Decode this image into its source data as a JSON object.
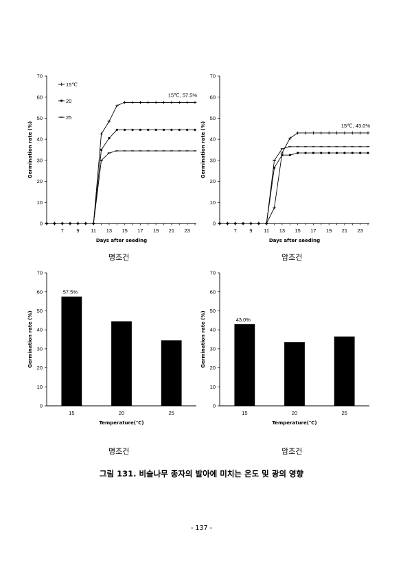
{
  "chart_data": [
    {
      "type": "line",
      "ylabel": "Germination rate (%)",
      "xlabel": "Days after seeding",
      "ylim": [
        0,
        70
      ],
      "yticks": [
        0,
        10,
        20,
        30,
        40,
        50,
        60,
        70
      ],
      "xticks": [
        7,
        9,
        11,
        13,
        15,
        17,
        19,
        21,
        23
      ],
      "x": [
        5,
        6,
        7,
        8,
        9,
        10,
        11,
        12,
        13,
        14,
        15,
        16,
        17,
        18,
        19,
        20,
        21,
        22,
        23,
        24
      ],
      "series": [
        {
          "name": "15℃",
          "marker": "+",
          "values": [
            0,
            0,
            0,
            0,
            0,
            0,
            0,
            42.5,
            48.5,
            56.0,
            57.5,
            57.5,
            57.5,
            57.5,
            57.5,
            57.5,
            57.5,
            57.5,
            57.5,
            57.5
          ]
        },
        {
          "name": "20",
          "marker": "dot",
          "values": [
            0,
            0,
            0,
            0,
            0,
            0,
            0,
            35.0,
            40.5,
            44.5,
            44.5,
            44.5,
            44.5,
            44.5,
            44.5,
            44.5,
            44.5,
            44.5,
            44.5,
            44.5
          ]
        },
        {
          "name": "25",
          "marker": "dash",
          "values": [
            0,
            0,
            0,
            0,
            0,
            0,
            0,
            30.0,
            33.5,
            34.5,
            34.5,
            34.5,
            34.5,
            34.5,
            34.5,
            34.5,
            34.5,
            34.5,
            34.5,
            34.5
          ]
        }
      ],
      "annotation": "15℃, 57.5%",
      "caption": "명조건"
    },
    {
      "type": "line",
      "ylabel": "Germination rate (%)",
      "xlabel": "Days after seeding",
      "ylim": [
        0,
        70
      ],
      "yticks": [
        0,
        10,
        20,
        30,
        40,
        50,
        60,
        70
      ],
      "xticks": [
        7,
        9,
        11,
        13,
        15,
        17,
        19,
        21,
        23
      ],
      "x": [
        5,
        6,
        7,
        8,
        9,
        10,
        11,
        12,
        13,
        14,
        15,
        16,
        17,
        18,
        19,
        20,
        21,
        22,
        23,
        24
      ],
      "series": [
        {
          "name": "15℃",
          "marker": "+",
          "values": [
            0,
            0,
            0,
            0,
            0,
            0,
            0,
            7.5,
            33.5,
            40.5,
            43.0,
            43.0,
            43.0,
            43.0,
            43.0,
            43.0,
            43.0,
            43.0,
            43.0,
            43.0
          ]
        },
        {
          "name": "20",
          "marker": "dot",
          "values": [
            0,
            0,
            0,
            0,
            0,
            0,
            0,
            26.5,
            32.5,
            32.5,
            33.5,
            33.5,
            33.5,
            33.5,
            33.5,
            33.5,
            33.5,
            33.5,
            33.5,
            33.5
          ]
        },
        {
          "name": "25",
          "marker": "dash",
          "values": [
            0,
            0,
            0,
            0,
            0,
            0,
            0,
            30.0,
            35.5,
            36.5,
            36.5,
            36.5,
            36.5,
            36.5,
            36.5,
            36.5,
            36.5,
            36.5,
            36.5,
            36.5
          ]
        }
      ],
      "annotation": "15℃, 43.0%",
      "caption": "암조건"
    },
    {
      "type": "bar",
      "ylabel": "Germination rate (%)",
      "xlabel": "Temperature(℃)",
      "ylim": [
        0,
        70
      ],
      "yticks": [
        0,
        10,
        20,
        30,
        40,
        50,
        60,
        70
      ],
      "categories": [
        "15",
        "20",
        "25"
      ],
      "values": [
        57.5,
        44.5,
        34.5
      ],
      "data_label": "57.5%",
      "caption": "명조건"
    },
    {
      "type": "bar",
      "ylabel": "Germination rate (%)",
      "xlabel": "Temperature(℃)",
      "ylim": [
        0,
        70
      ],
      "yticks": [
        0,
        10,
        20,
        30,
        40,
        50,
        60,
        70
      ],
      "categories": [
        "15",
        "20",
        "25"
      ],
      "values": [
        43.0,
        33.5,
        36.5
      ],
      "data_label": "43.0%",
      "caption": "암조건"
    }
  ],
  "figure_caption": "그림 131. 비술나무 종자의 발아에 미치는 온도 및 광의 영향",
  "page_number": "- 137 -"
}
